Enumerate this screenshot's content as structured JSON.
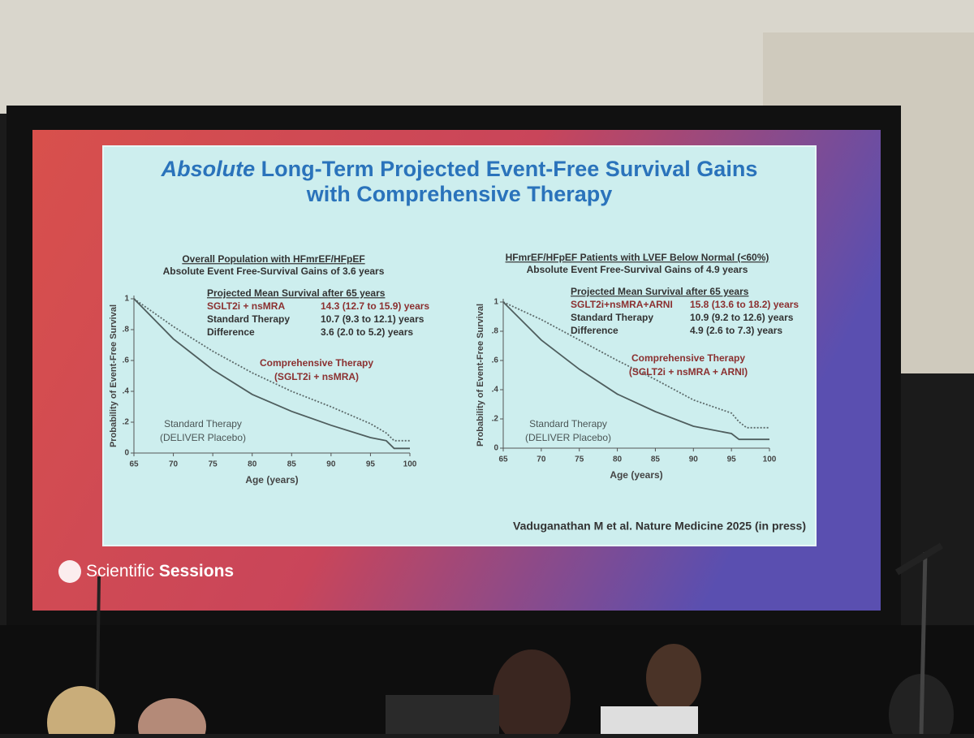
{
  "slide": {
    "title_emphasis": "Absolute",
    "title_rest": "Long-Term Projected Event-Free Survival Gains",
    "title_line2": "with Comprehensive Therapy",
    "citation": "Vaduganathan M et al. Nature Medicine 2025 (in press)",
    "brand_1": "Scientific",
    "brand_2": "Sessions"
  },
  "chart_data": [
    {
      "type": "line",
      "title": "Overall Population with HFmrEF/HFpEF",
      "subtitle": "Absolute Event Free-Survival Gains of 3.6 years",
      "x_label": "Age (years)",
      "y_label": "Probability of Event-Free Survival",
      "summary": {
        "heading": "Projected Mean Survival after 65 years",
        "rows": [
          [
            "SGLT2i + nsMRA",
            "14.3 (12.7 to 15.9) years"
          ],
          [
            "Standard Therapy",
            "10.7 (9.3 to 12.1) years"
          ],
          [
            "Difference",
            "3.6 (2.0 to 5.2) years"
          ]
        ]
      },
      "x": [
        65,
        70,
        75,
        80,
        85,
        90,
        95,
        97,
        98,
        100
      ],
      "series": [
        {
          "name": "Comprehensive Therapy",
          "sublabel": "(SGLT2i + nsMRA)",
          "color": "#5d6b6b",
          "dashed": true,
          "label_color": "#8b3030",
          "values": [
            1,
            0.82,
            0.66,
            0.52,
            0.4,
            0.3,
            0.19,
            0.13,
            0.08,
            0.08
          ]
        },
        {
          "name": "Standard Therapy",
          "sublabel": "(DELIVER Placebo)",
          "color": "#4f5e5e",
          "dashed": false,
          "label_color": "#4a5555",
          "values": [
            1,
            0.74,
            0.54,
            0.38,
            0.27,
            0.18,
            0.1,
            0.08,
            0.03,
            0.03
          ]
        }
      ],
      "xlim": [
        65,
        100
      ],
      "xticks": [
        65,
        70,
        75,
        80,
        85,
        90,
        95,
        100
      ],
      "ylim": [
        0,
        1
      ],
      "yticks": [
        0,
        {
          "value": 0.2,
          "label": ".2"
        },
        {
          "value": 0.4,
          "label": ".4"
        },
        {
          "value": 0.6,
          "label": ".6"
        },
        {
          "value": 0.8,
          "label": ".8"
        },
        1
      ]
    },
    {
      "type": "line",
      "title": "HFmrEF/HFpEF Patients with LVEF Below Normal (<60%)",
      "subtitle": "Absolute Event Free-Survival Gains of 4.9 years",
      "x_label": "Age (years)",
      "y_label": "Probability of Event-Free Survival",
      "summary": {
        "heading": "Projected Mean Survival after 65 years",
        "rows": [
          [
            "SGLT2i+nsMRA+ARNI",
            "15.8 (13.6 to 18.2) years"
          ],
          [
            "Standard Therapy",
            "10.9 (9.2 to 12.6) years"
          ],
          [
            "Difference",
            "4.9 (2.6 to 7.3) years"
          ]
        ]
      },
      "x": [
        65,
        70,
        75,
        80,
        85,
        90,
        95,
        96,
        97,
        100
      ],
      "series": [
        {
          "name": "Comprehensive Therapy",
          "sublabel": "(SGLT2i + nsMRA + ARNI)",
          "color": "#5d6b6b",
          "dashed": true,
          "label_color": "#8b3030",
          "values": [
            1,
            0.88,
            0.74,
            0.6,
            0.47,
            0.33,
            0.24,
            0.18,
            0.14,
            0.14
          ]
        },
        {
          "name": "Standard Therapy",
          "sublabel": "(DELIVER Placebo)",
          "color": "#4f5e5e",
          "dashed": false,
          "label_color": "#4a5555",
          "values": [
            1,
            0.74,
            0.54,
            0.37,
            0.25,
            0.15,
            0.1,
            0.06,
            0.06,
            0.06
          ]
        }
      ],
      "xlim": [
        65,
        100
      ],
      "xticks": [
        65,
        70,
        75,
        80,
        85,
        90,
        95,
        100
      ],
      "ylim": [
        0,
        1
      ],
      "yticks": [
        0,
        {
          "value": 0.2,
          "label": ".2"
        },
        {
          "value": 0.4,
          "label": ".4"
        },
        {
          "value": 0.6,
          "label": ".6"
        },
        {
          "value": 0.8,
          "label": ".8"
        },
        1
      ]
    }
  ]
}
